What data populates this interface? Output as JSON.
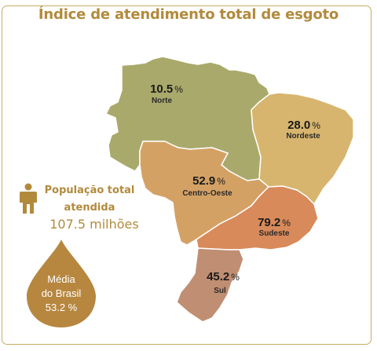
{
  "title": "Índice de atendimento total de esgoto",
  "regions": [
    {
      "id": "norte",
      "name": "Norte",
      "value": "10.5",
      "unit": "%",
      "color": "#a9a96b"
    },
    {
      "id": "nordeste",
      "name": "Nordeste",
      "value": "28.0",
      "unit": "%",
      "color": "#d8b56e"
    },
    {
      "id": "centro-oeste",
      "name": "Centro-Oeste",
      "value": "52.9",
      "unit": "%",
      "color": "#d4a165"
    },
    {
      "id": "sudeste",
      "name": "Sudeste",
      "value": "79.2",
      "unit": "%",
      "color": "#d88a5a"
    },
    {
      "id": "sul",
      "name": "Sul",
      "value": "45.2",
      "unit": "%",
      "color": "#c08e72"
    }
  ],
  "population": {
    "label_line1": "População total",
    "label_line2": "atendida",
    "value": "107.5 milhões",
    "icon": "person-icon"
  },
  "average": {
    "line1": "Média",
    "line2": "do Brasil",
    "value": "53.2 %",
    "icon": "drop-icon"
  },
  "colors": {
    "accent": "#b28a3c",
    "border": "#c9ac63",
    "drop": "#b7873f"
  }
}
